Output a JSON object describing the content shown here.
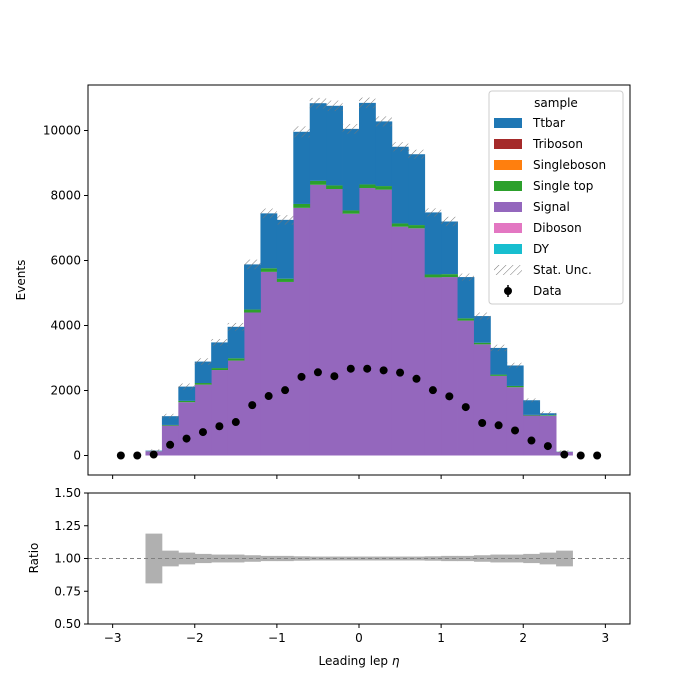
{
  "chart_data": {
    "type": "bar",
    "stacked": true,
    "main": {
      "ylabel": "Events",
      "ylim": [
        -600,
        11400
      ],
      "yticks": [
        0,
        2000,
        4000,
        6000,
        8000,
        10000
      ],
      "ytick_labels": [
        "0",
        "2000",
        "4000",
        "6000",
        "8000",
        "10000"
      ]
    },
    "xlim": [
      -3.3,
      3.3
    ],
    "xticks": [
      -3,
      -2,
      -1,
      0,
      1,
      2,
      3
    ],
    "xtick_labels": [
      "−3",
      "−2",
      "−1",
      "0",
      "1",
      "2",
      "3"
    ],
    "xlabel_text": "Leading lep ",
    "xlabel_symbol": "η",
    "bin_edges": [
      -2.6,
      -2.4,
      -2.2,
      -2.0,
      -1.8,
      -1.6,
      -1.4,
      -1.2,
      -1.0,
      -0.8,
      -0.6,
      -0.4,
      -0.2,
      0.0,
      0.2,
      0.4,
      0.6,
      0.8,
      1.0,
      1.2,
      1.4,
      1.6,
      1.8,
      2.0,
      2.2,
      2.4,
      2.6
    ],
    "series": [
      {
        "name": "DY",
        "color": "#17becf",
        "values": [
          0,
          0,
          0,
          0,
          0,
          0,
          0,
          0,
          0,
          0,
          0,
          0,
          0,
          0,
          0,
          0,
          0,
          0,
          0,
          0,
          0,
          0,
          0,
          0,
          0,
          0
        ]
      },
      {
        "name": "Diboson",
        "color": "#e377c2",
        "values": [
          0,
          0,
          0,
          0,
          0,
          0,
          0,
          0,
          0,
          0,
          0,
          0,
          0,
          0,
          0,
          0,
          0,
          0,
          0,
          0,
          0,
          0,
          0,
          0,
          0,
          0
        ]
      },
      {
        "name": "Signal",
        "color": "#9467bd",
        "values": [
          130,
          920,
          1640,
          2180,
          2630,
          2920,
          4400,
          5650,
          5340,
          7620,
          8330,
          8200,
          7440,
          8230,
          8180,
          7040,
          6990,
          5480,
          5490,
          4150,
          3420,
          2450,
          2100,
          1230,
          1220,
          110
        ]
      },
      {
        "name": "Single top",
        "color": "#2ca02c",
        "values": [
          5,
          20,
          40,
          50,
          60,
          70,
          90,
          110,
          100,
          120,
          120,
          110,
          100,
          110,
          110,
          100,
          100,
          90,
          90,
          70,
          50,
          40,
          40,
          20,
          20,
          5
        ]
      },
      {
        "name": "Singleboson",
        "color": "#ff7f0e",
        "values": [
          0,
          0,
          0,
          0,
          0,
          0,
          0,
          0,
          0,
          0,
          0,
          0,
          0,
          0,
          0,
          0,
          0,
          0,
          0,
          0,
          0,
          0,
          0,
          0,
          0,
          0
        ]
      },
      {
        "name": "Triboson",
        "color": "#a52a2a",
        "values": [
          0,
          0,
          0,
          0,
          0,
          0,
          0,
          0,
          0,
          0,
          0,
          0,
          0,
          0,
          0,
          0,
          0,
          0,
          0,
          0,
          0,
          0,
          0,
          0,
          0,
          0
        ]
      },
      {
        "name": "Ttbar",
        "color": "#1f77b4",
        "values": [
          15,
          270,
          440,
          660,
          790,
          970,
          1390,
          1690,
          1810,
          2220,
          2390,
          2450,
          2510,
          2510,
          1990,
          2360,
          2180,
          1910,
          1620,
          1270,
          820,
          820,
          630,
          450,
          60,
          5
        ]
      }
    ],
    "data_points": {
      "name": "Data",
      "x": [
        -2.9,
        -2.7,
        -2.5,
        -2.3,
        -2.1,
        -1.9,
        -1.7,
        -1.5,
        -1.3,
        -1.1,
        -0.9,
        -0.7,
        -0.5,
        -0.3,
        -0.1,
        0.1,
        0.3,
        0.5,
        0.7,
        0.9,
        1.1,
        1.3,
        1.5,
        1.7,
        1.9,
        2.1,
        2.3,
        2.5,
        2.7,
        2.9
      ],
      "y": [
        0,
        0,
        30,
        330,
        520,
        720,
        900,
        1030,
        1550,
        1830,
        2010,
        2420,
        2560,
        2440,
        2670,
        2670,
        2620,
        2550,
        2360,
        2010,
        1820,
        1490,
        1000,
        930,
        770,
        460,
        290,
        30,
        0,
        0
      ]
    },
    "ratio": {
      "ylabel": "Ratio",
      "ylim": [
        0.5,
        1.5
      ],
      "yticks": [
        0.5,
        0.75,
        1.0,
        1.25,
        1.5
      ],
      "ytick_labels": [
        "0.50",
        "0.75",
        "1.00",
        "1.25",
        "1.50"
      ],
      "reference_line": 1.0,
      "unc_rel": [
        0.19,
        0.06,
        0.045,
        0.035,
        0.03,
        0.03,
        0.025,
        0.02,
        0.02,
        0.017,
        0.015,
        0.015,
        0.015,
        0.015,
        0.015,
        0.015,
        0.015,
        0.017,
        0.02,
        0.02,
        0.025,
        0.03,
        0.03,
        0.035,
        0.045,
        0.06
      ]
    },
    "legend": {
      "title": "sample",
      "placement": "top-right",
      "entries": [
        "Ttbar",
        "Triboson",
        "Singleboson",
        "Single top",
        "Signal",
        "Diboson",
        "DY",
        "Stat. Unc.",
        "Data"
      ]
    }
  }
}
